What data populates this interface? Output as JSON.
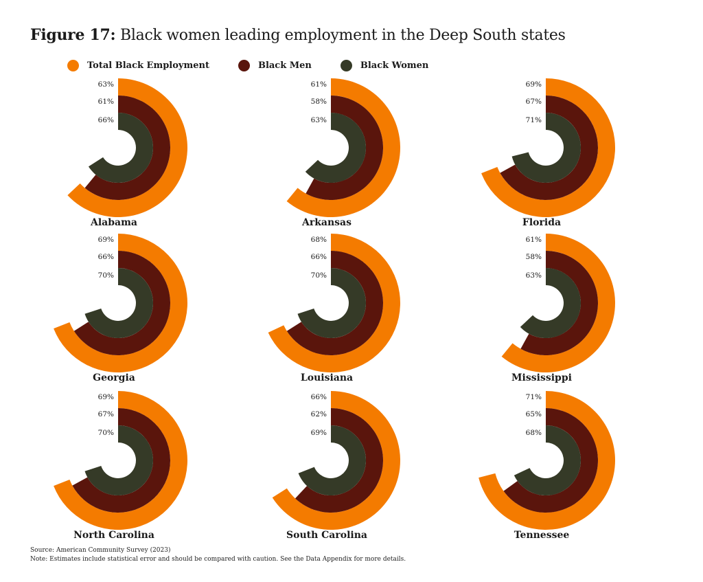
{
  "figure": {
    "lead": "Figure 17:",
    "title": "Black women leading employment in the Deep South states"
  },
  "legend": [
    {
      "label": "Total Black Employment",
      "color": "#F47B00"
    },
    {
      "label": "Black Men",
      "color": "#5A150C"
    },
    {
      "label": "Black Women",
      "color": "#353A27"
    }
  ],
  "footer": {
    "source": "Source: American Community Survey (2023)",
    "note": "Note: Estimates include statistical error and should be compared with caution. See the Data Appendix for more details."
  },
  "chart_data": {
    "type": "radial-bar",
    "title": "Black women leading employment in the Deep South states",
    "unit": "%",
    "value_range": [
      0,
      100
    ],
    "legend_position": "top",
    "series_names": [
      "Total Black Employment",
      "Black Men",
      "Black Women"
    ],
    "colors": [
      "#F47B00",
      "#5A150C",
      "#353A27"
    ],
    "panels": [
      {
        "state": "Alabama",
        "values": [
          63,
          61,
          66
        ]
      },
      {
        "state": "Arkansas",
        "values": [
          61,
          58,
          63
        ]
      },
      {
        "state": "Florida",
        "values": [
          69,
          67,
          71
        ]
      },
      {
        "state": "Georgia",
        "values": [
          69,
          66,
          70
        ]
      },
      {
        "state": "Louisiana",
        "values": [
          68,
          66,
          70
        ]
      },
      {
        "state": "Mississippi",
        "values": [
          61,
          58,
          63
        ]
      },
      {
        "state": "North Carolina",
        "values": [
          69,
          67,
          70
        ]
      },
      {
        "state": "South Carolina",
        "values": [
          66,
          62,
          69
        ]
      },
      {
        "state": "Tennessee",
        "values": [
          71,
          65,
          68
        ]
      }
    ]
  }
}
